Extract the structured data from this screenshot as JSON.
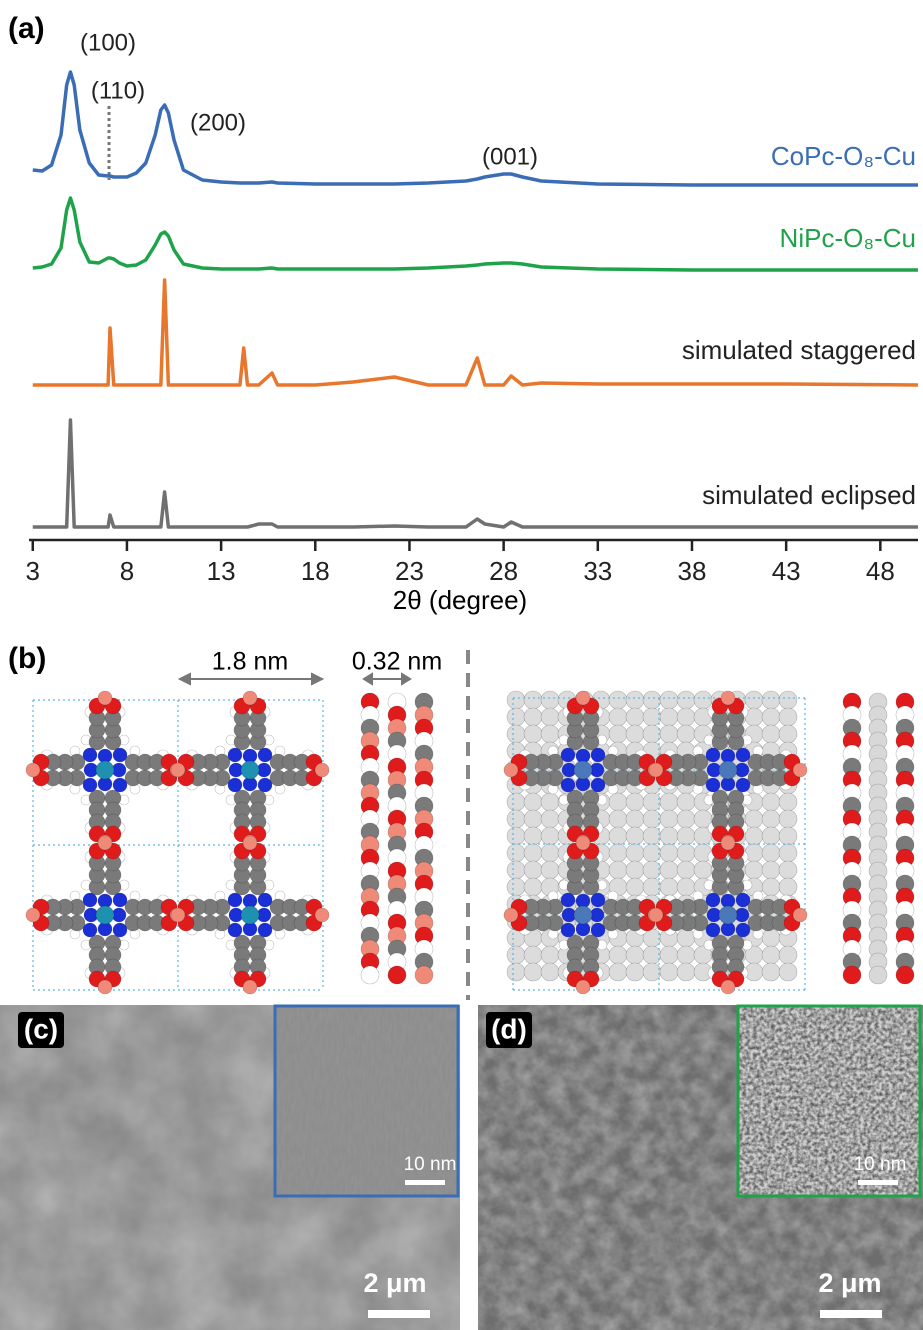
{
  "chart_data": {
    "type": "line",
    "panel_label": "(a)",
    "x_label": "2θ (degree)",
    "x": [
      3,
      3.5,
      4,
      4.5,
      4.8,
      5,
      5.2,
      5.5,
      6,
      6.5,
      7,
      7.1,
      7.3,
      7.6,
      8,
      8.5,
      9,
      9.5,
      9.8,
      10,
      10.2,
      10.5,
      11,
      12,
      13,
      14,
      14.2,
      14.4,
      15,
      15.7,
      16,
      18,
      20,
      22.2,
      24,
      26,
      26.6,
      27,
      28,
      28.4,
      29,
      30,
      33,
      38,
      43,
      50
    ],
    "xlim": [
      2.8,
      50
    ],
    "xticks": [
      3,
      8,
      13,
      18,
      23,
      28,
      33,
      38,
      43,
      48
    ],
    "series": [
      {
        "name": "CoPc-O₈-Cu",
        "color": "#3a6db5",
        "values": [
          15,
          14,
          20,
          50,
          100,
          113,
          100,
          55,
          22,
          10,
          9,
          9,
          8,
          8,
          8,
          12,
          22,
          50,
          75,
          80,
          72,
          45,
          15,
          5,
          3,
          2,
          2,
          2,
          2,
          3,
          2,
          1,
          1,
          1,
          2,
          4,
          6,
          8,
          11,
          11,
          8,
          4,
          1,
          0,
          0,
          0
        ]
      },
      {
        "name": "NiPc-O₈-Cu",
        "color": "#1fa34a",
        "values": [
          2,
          3,
          6,
          22,
          60,
          72,
          60,
          28,
          8,
          7,
          12,
          12,
          11,
          7,
          4,
          5,
          10,
          25,
          36,
          38,
          34,
          20,
          6,
          2,
          1,
          1,
          1,
          1,
          1,
          2,
          1,
          1,
          1,
          1,
          2,
          4,
          5,
          6,
          7,
          7,
          6,
          3,
          1,
          0,
          0,
          0
        ]
      },
      {
        "name": "simulated staggered",
        "color": "#e8762c",
        "values": [
          0,
          0,
          0,
          0,
          0,
          0,
          0,
          0,
          0,
          0,
          0,
          57,
          0,
          0,
          0,
          0,
          0,
          0,
          0,
          105,
          0,
          0,
          0,
          0,
          0,
          0,
          37,
          0,
          0,
          12,
          0,
          0,
          3,
          8,
          0,
          0,
          27,
          0,
          0,
          9,
          0,
          2,
          1,
          1,
          1,
          0
        ]
      },
      {
        "name": "simulated eclipsed",
        "color": "#707070",
        "values": [
          0,
          0,
          0,
          0,
          0,
          107,
          0,
          0,
          0,
          0,
          0,
          12,
          0,
          0,
          0,
          0,
          0,
          0,
          0,
          35,
          0,
          0,
          0,
          0,
          0,
          0,
          0,
          0,
          3,
          3,
          0,
          0,
          0,
          1,
          0,
          0,
          8,
          3,
          0,
          5,
          0,
          0,
          0,
          0,
          0,
          0
        ]
      }
    ],
    "annotations": [
      "(100)",
      "(110)",
      "(200)",
      "(001)"
    ]
  },
  "panel_b": {
    "label": "(b)",
    "dimensions": [
      "1.8 nm",
      "0.32 nm"
    ]
  },
  "panel_c": {
    "label": "(c)",
    "inset_scale": "10 nm",
    "scale": "2 μm"
  },
  "panel_d": {
    "label": "(d)",
    "inset_scale": "10 nm",
    "scale": "2 μm"
  }
}
